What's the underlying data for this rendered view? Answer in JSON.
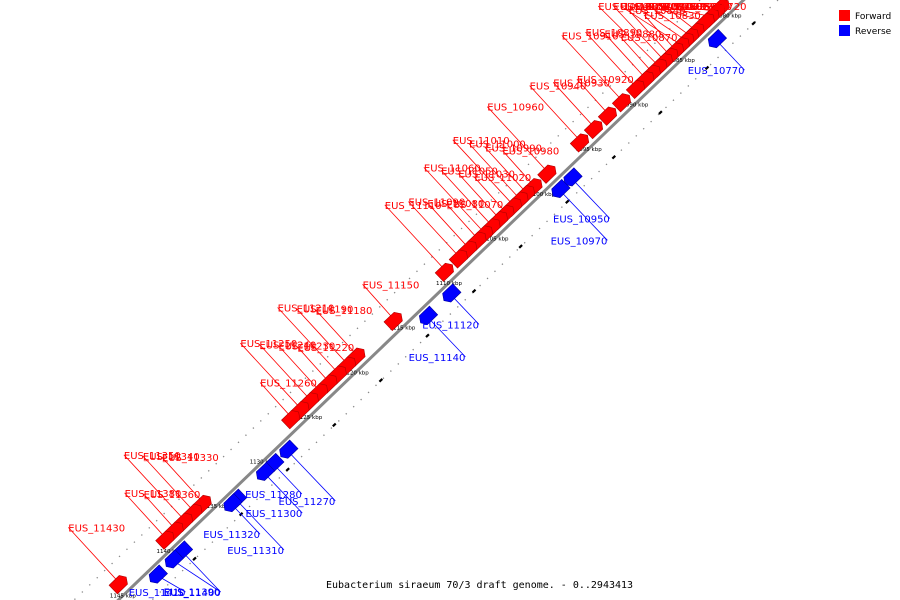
{
  "caption": "Eubacterium siraeum 70/3 draft genome. - 0..2943413",
  "colors": {
    "forward": "#ff0000",
    "reverse": "#0000ff",
    "axis": "#888888"
  },
  "legend": [
    {
      "label": "Forward",
      "color": "#ff0000"
    },
    {
      "label": "Reverse",
      "color": "#0000ff"
    }
  ],
  "scale": {
    "unit": "kbp",
    "ticks": [
      1080,
      1085,
      1090,
      1095,
      1100,
      1105,
      1110,
      1115,
      1120,
      1125,
      1130,
      1135,
      1140,
      1145
    ]
  },
  "genes": [
    {
      "name": "EUS_10720",
      "strand": "forward",
      "pos": 1080.9
    },
    {
      "name": "EUS_10740",
      "strand": "forward",
      "pos": 1081.4
    },
    {
      "name": "EUS_10750",
      "strand": "forward",
      "pos": 1082.0
    },
    {
      "name": "EUS_10760",
      "strand": "forward",
      "pos": 1082.5
    },
    {
      "name": "EUS_10770",
      "strand": "reverse",
      "pos": 1083.0
    },
    {
      "name": "EUS_10780",
      "strand": "forward",
      "pos": 1083.6
    },
    {
      "name": "EUS_10790",
      "strand": "forward",
      "pos": 1084.2
    },
    {
      "name": "EUS_10800",
      "strand": "forward",
      "pos": 1084.7
    },
    {
      "name": "EUS_10820",
      "strand": "forward",
      "pos": 1085.2
    },
    {
      "name": "EUS_10830",
      "strand": "forward",
      "pos": 1085.8
    },
    {
      "name": "EUS_10840",
      "strand": "forward",
      "pos": 1086.4
    },
    {
      "name": "EUS_10850",
      "strand": "forward",
      "pos": 1087.0
    },
    {
      "name": "EUS_10860",
      "strand": "forward",
      "pos": 1087.6
    },
    {
      "name": "EUS_10870",
      "strand": "forward",
      "pos": 1088.3
    },
    {
      "name": "EUS_10880",
      "strand": "forward",
      "pos": 1089.0
    },
    {
      "name": "EUS_10890",
      "strand": "forward",
      "pos": 1090.0
    },
    {
      "name": "EUS_10910",
      "strand": "forward",
      "pos": 1091.5
    },
    {
      "name": "EUS_10920",
      "strand": "forward",
      "pos": 1093.0
    },
    {
      "name": "EUS_10930",
      "strand": "forward",
      "pos": 1094.5
    },
    {
      "name": "EUS_10940",
      "strand": "forward",
      "pos": 1096.0
    },
    {
      "name": "EUS_10950",
      "strand": "reverse",
      "pos": 1098.5
    },
    {
      "name": "EUS_10960",
      "strand": "forward",
      "pos": 1099.5
    },
    {
      "name": "EUS_10970",
      "strand": "reverse",
      "pos": 1099.8
    },
    {
      "name": "EUS_10980",
      "strand": "forward",
      "pos": 1101.0
    },
    {
      "name": "EUS_10990",
      "strand": "forward",
      "pos": 1101.8
    },
    {
      "name": "EUS_11000",
      "strand": "forward",
      "pos": 1102.5
    },
    {
      "name": "EUS_11010",
      "strand": "forward",
      "pos": 1103.2
    },
    {
      "name": "EUS_11020",
      "strand": "forward",
      "pos": 1104.0
    },
    {
      "name": "EUS_11030",
      "strand": "forward",
      "pos": 1104.7
    },
    {
      "name": "EUS_11050",
      "strand": "forward",
      "pos": 1105.5
    },
    {
      "name": "EUS_11060",
      "strand": "forward",
      "pos": 1106.3
    },
    {
      "name": "EUS_11070",
      "strand": "forward",
      "pos": 1107.0
    },
    {
      "name": "EUS_11080",
      "strand": "forward",
      "pos": 1108.0
    },
    {
      "name": "EUS_11090",
      "strand": "forward",
      "pos": 1109.0
    },
    {
      "name": "EUS_11110",
      "strand": "forward",
      "pos": 1110.5
    },
    {
      "name": "EUS_11120",
      "strand": "reverse",
      "pos": 1111.5
    },
    {
      "name": "EUS_11140",
      "strand": "reverse",
      "pos": 1114.0
    },
    {
      "name": "EUS_11150",
      "strand": "forward",
      "pos": 1116.0
    },
    {
      "name": "EUS_11180",
      "strand": "forward",
      "pos": 1120.0
    },
    {
      "name": "EUS_11190",
      "strand": "forward",
      "pos": 1121.0
    },
    {
      "name": "EUS_11210",
      "strand": "forward",
      "pos": 1122.0
    },
    {
      "name": "EUS_11220",
      "strand": "forward",
      "pos": 1123.0
    },
    {
      "name": "EUS_11230",
      "strand": "forward",
      "pos": 1124.0
    },
    {
      "name": "EUS_11240",
      "strand": "forward",
      "pos": 1125.0
    },
    {
      "name": "EUS_11250",
      "strand": "forward",
      "pos": 1126.0
    },
    {
      "name": "EUS_11260",
      "strand": "forward",
      "pos": 1127.0
    },
    {
      "name": "EUS_11270",
      "strand": "reverse",
      "pos": 1129.0
    },
    {
      "name": "EUS_11280",
      "strand": "reverse",
      "pos": 1130.5
    },
    {
      "name": "EUS_11300",
      "strand": "reverse",
      "pos": 1131.5
    },
    {
      "name": "EUS_11310",
      "strand": "reverse",
      "pos": 1134.5
    },
    {
      "name": "EUS_11320",
      "strand": "reverse",
      "pos": 1135.0
    },
    {
      "name": "EUS_11330",
      "strand": "forward",
      "pos": 1136.5
    },
    {
      "name": "EUS_11340",
      "strand": "forward",
      "pos": 1137.5
    },
    {
      "name": "EUS_11350",
      "strand": "forward",
      "pos": 1138.5
    },
    {
      "name": "EUS_11360",
      "strand": "forward",
      "pos": 1139.5
    },
    {
      "name": "EUS_11380",
      "strand": "forward",
      "pos": 1140.5
    },
    {
      "name": "EUS_11390",
      "strand": "reverse",
      "pos": 1140.3
    },
    {
      "name": "EUS_11400",
      "strand": "reverse",
      "pos": 1141.3
    },
    {
      "name": "EUS_11410",
      "strand": "reverse",
      "pos": 1143.0
    },
    {
      "name": "EUS_11430",
      "strand": "forward",
      "pos": 1145.5
    }
  ]
}
